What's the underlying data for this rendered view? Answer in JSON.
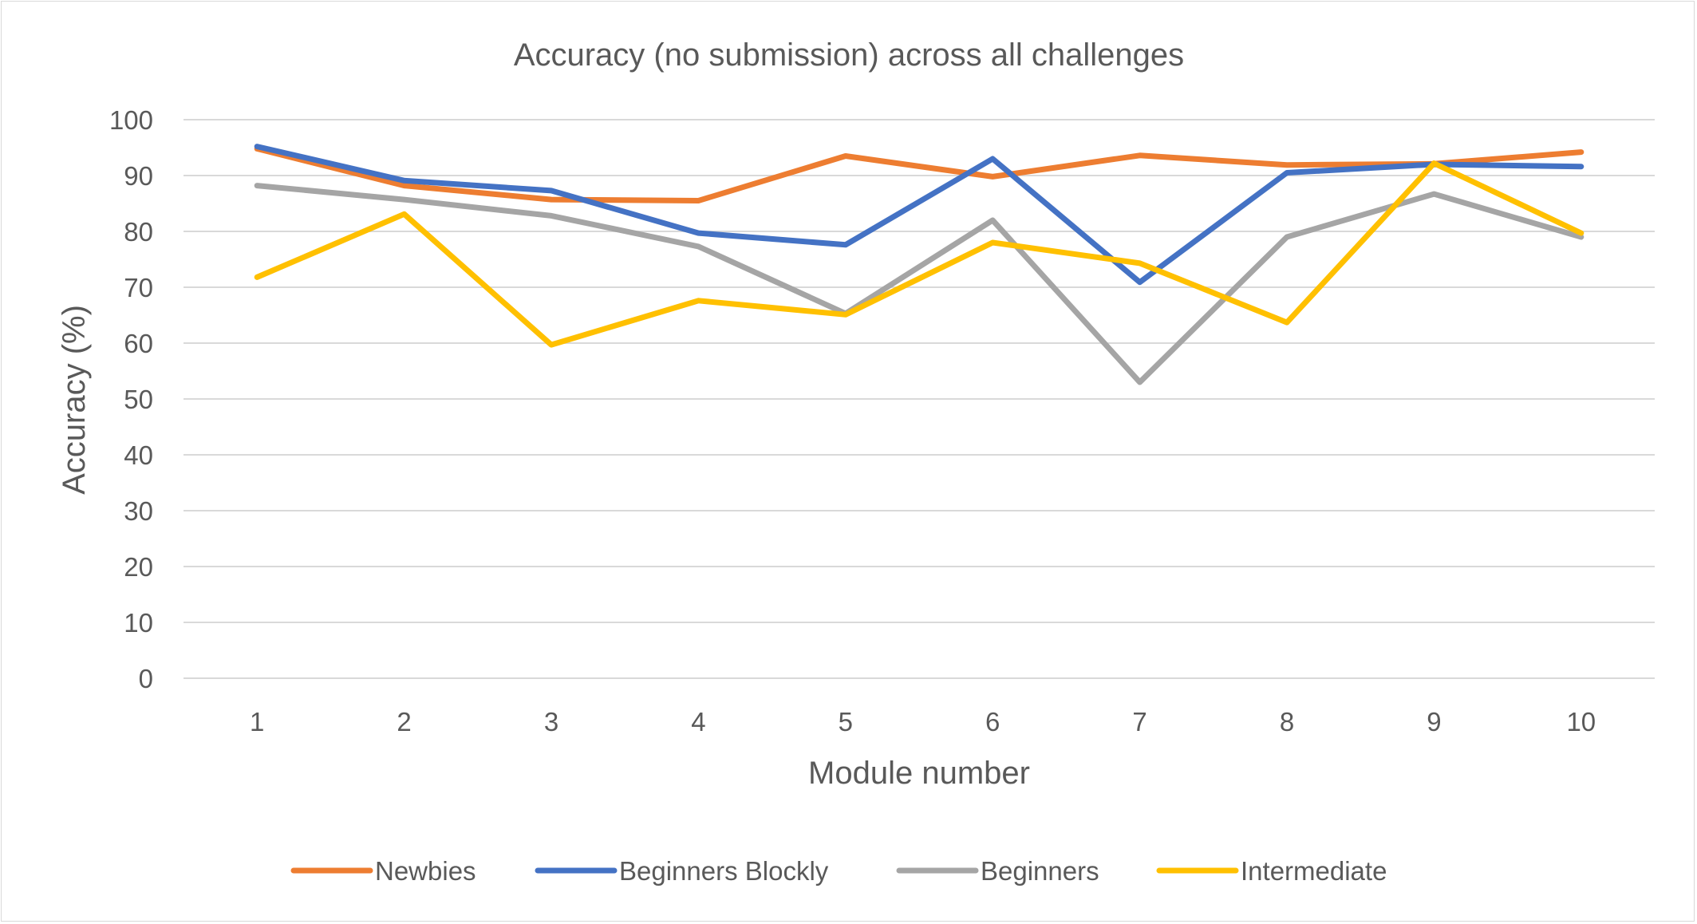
{
  "chart_data": {
    "type": "line",
    "title": "Accuracy (no submission) across all challenges",
    "xlabel": "Module number",
    "ylabel": "Accuracy (%)",
    "categories": [
      "1",
      "2",
      "3",
      "4",
      "5",
      "6",
      "7",
      "8",
      "9",
      "10"
    ],
    "ylim": [
      0,
      100
    ],
    "yticks": [
      "0",
      "10",
      "20",
      "30",
      "40",
      "50",
      "60",
      "70",
      "80",
      "90",
      "100"
    ],
    "grid": true,
    "legend_position": "bottom",
    "series": [
      {
        "name": "Newbies",
        "color": "#ED7D31",
        "values": [
          94.8,
          88.2,
          85.7,
          85.5,
          93.5,
          89.8,
          93.6,
          91.9,
          92.1,
          94.2
        ]
      },
      {
        "name": "Beginners Blockly",
        "color": "#4472C4",
        "values": [
          95.2,
          89.1,
          87.3,
          79.7,
          77.6,
          93.0,
          70.9,
          90.5,
          92.0,
          91.6
        ]
      },
      {
        "name": "Beginners",
        "color": "#A5A5A5",
        "values": [
          88.2,
          85.7,
          82.8,
          77.3,
          65.3,
          82.0,
          53.0,
          79.0,
          86.7,
          79.0
        ]
      },
      {
        "name": "Intermediate",
        "color": "#FFC000",
        "values": [
          71.8,
          83.1,
          59.7,
          67.6,
          65.1,
          78.0,
          74.3,
          63.7,
          92.2,
          79.7
        ]
      }
    ]
  }
}
